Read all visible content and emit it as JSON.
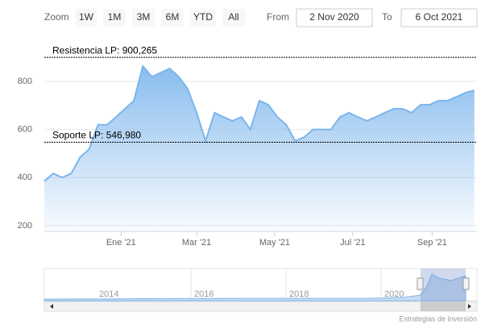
{
  "chart_data": {
    "type": "area",
    "range_selector": {
      "zoom_label": "Zoom",
      "buttons": [
        "1W",
        "1M",
        "3M",
        "6M",
        "YTD",
        "All"
      ],
      "from_label": "From",
      "from": "2 Nov 2020",
      "to_label": "To",
      "to": "6 Oct 2021"
    },
    "x": [
      "2020-11-02",
      "2020-11-09",
      "2020-11-16",
      "2020-11-23",
      "2020-11-30",
      "2020-12-07",
      "2020-12-14",
      "2020-12-21",
      "2020-12-28",
      "2021-01-04",
      "2021-01-11",
      "2021-01-18",
      "2021-01-25",
      "2021-02-01",
      "2021-02-08",
      "2021-02-15",
      "2021-02-22",
      "2021-03-01",
      "2021-03-08",
      "2021-03-15",
      "2021-03-22",
      "2021-03-29",
      "2021-04-05",
      "2021-04-12",
      "2021-04-19",
      "2021-04-26",
      "2021-05-03",
      "2021-05-10",
      "2021-05-17",
      "2021-05-24",
      "2021-05-31",
      "2021-06-07",
      "2021-06-14",
      "2021-06-21",
      "2021-06-28",
      "2021-07-05",
      "2021-07-12",
      "2021-07-19",
      "2021-07-26",
      "2021-08-02",
      "2021-08-09",
      "2021-08-16",
      "2021-08-23",
      "2021-08-30",
      "2021-09-06",
      "2021-09-13",
      "2021-09-20",
      "2021-09-27",
      "2021-10-04"
    ],
    "values": [
      385,
      417,
      400,
      417,
      485,
      518,
      620,
      620,
      652,
      686,
      720,
      864,
      820,
      837,
      854,
      820,
      770,
      670,
      552,
      670,
      652,
      636,
      652,
      600,
      720,
      703,
      652,
      620,
      552,
      568,
      600,
      600,
      600,
      652,
      670,
      652,
      636,
      652,
      670,
      686,
      686,
      670,
      703,
      703,
      720,
      720,
      736,
      753,
      763
    ],
    "color": "#7cb5ec",
    "xlim": [
      "2020-11-02",
      "2021-10-06"
    ],
    "xticks": [
      {
        "value": "2021-01-01",
        "label": "Ene '21"
      },
      {
        "value": "2021-03-01",
        "label": "Mar '21"
      },
      {
        "value": "2021-05-01",
        "label": "May '21"
      },
      {
        "value": "2021-07-01",
        "label": "Jul '21"
      },
      {
        "value": "2021-09-01",
        "label": "Sep '21"
      }
    ],
    "ylim": [
      176,
      988
    ],
    "yticks": [
      200,
      400,
      600,
      800
    ],
    "grid": true,
    "plot_lines": [
      {
        "value": 900.265,
        "label": "Resistencia LP: 900,265"
      },
      {
        "value": 546.98,
        "label": "Soporte LP: 546,980"
      }
    ],
    "navigator_labels": [
      "2014",
      "2016",
      "2018",
      "2020"
    ],
    "credits": "Estrategias de Inversión"
  }
}
